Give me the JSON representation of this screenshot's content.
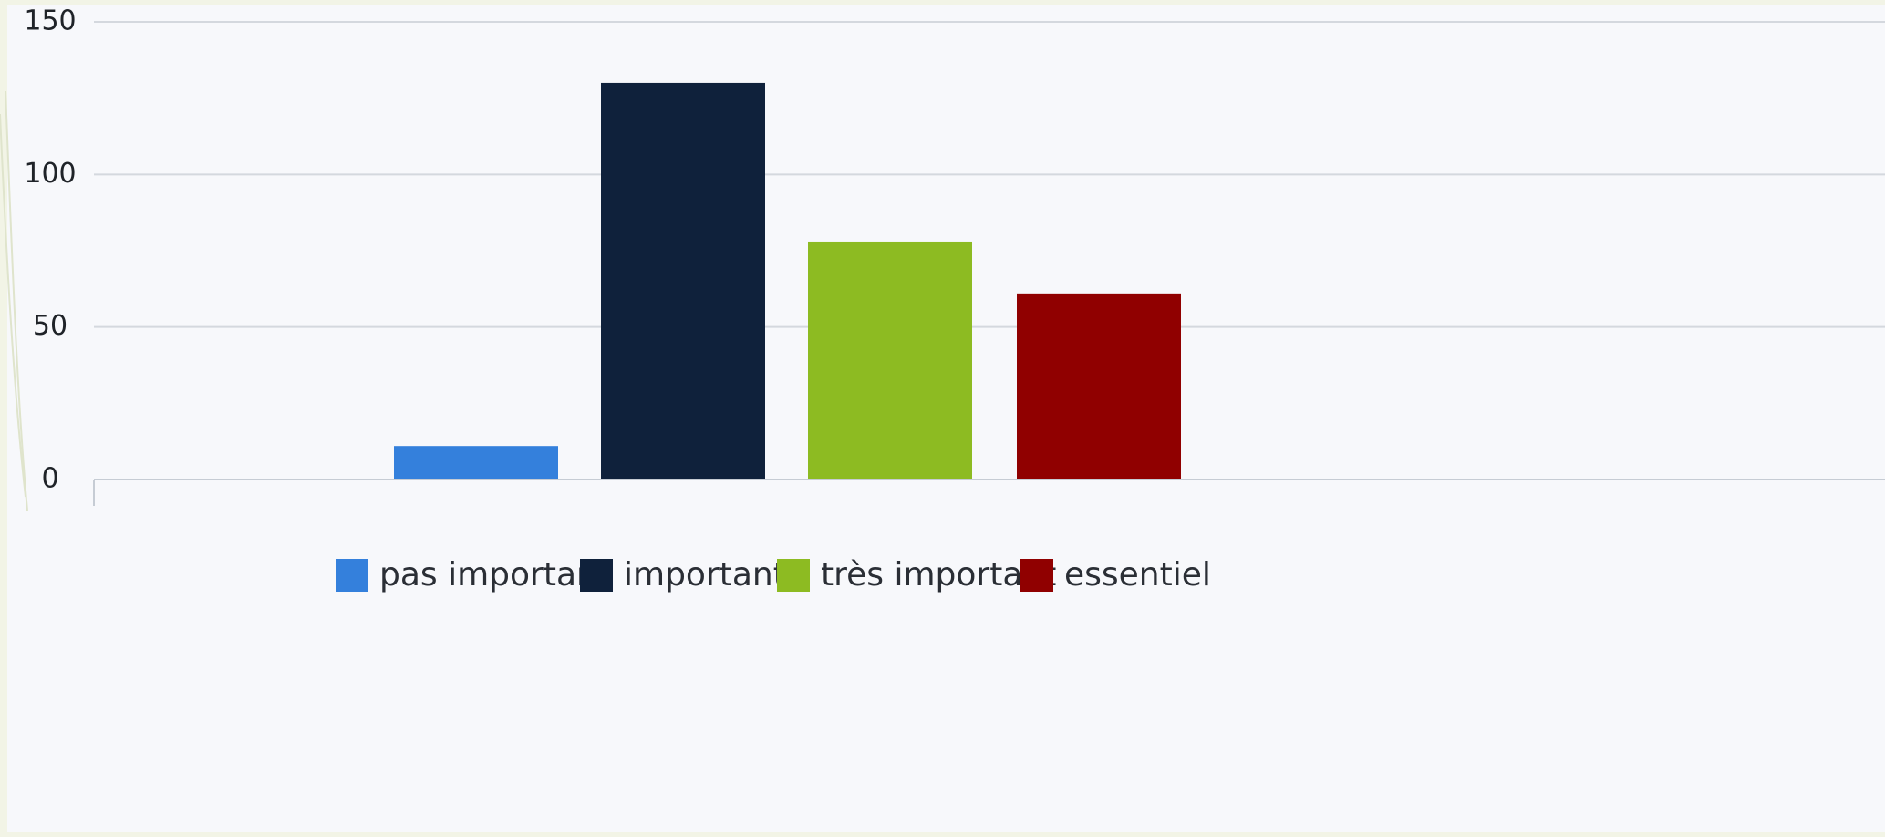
{
  "chart_data": {
    "type": "bar",
    "categories": [
      "pas important",
      "important",
      "très important",
      "essentiel"
    ],
    "values": [
      11,
      130,
      78,
      61
    ],
    "colors": [
      "#3480dc",
      "#0f213b",
      "#8dbb22",
      "#900000"
    ],
    "yticks": [
      "0",
      "50",
      "100",
      "150"
    ],
    "ylim": [
      0,
      150
    ],
    "grid": true,
    "legend": {
      "position": "bottom-center",
      "items": [
        "pas important",
        "important",
        "très important",
        "essentiel"
      ]
    }
  }
}
